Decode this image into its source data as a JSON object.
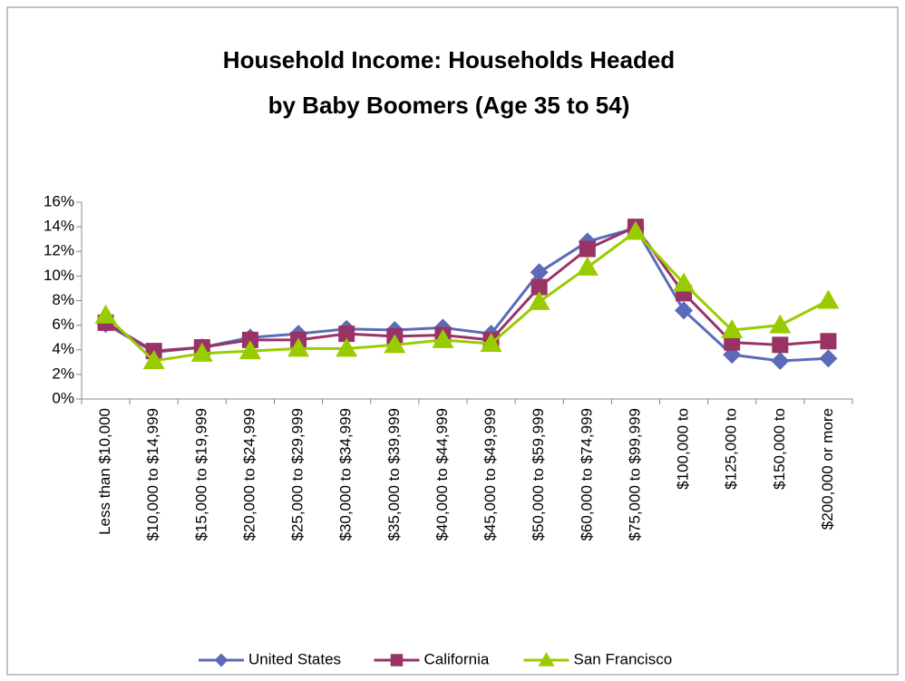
{
  "chart_data": {
    "type": "line",
    "title": [
      "Household Income: Households Headed",
      "by Baby Boomers (Age 35 to 54)"
    ],
    "categories": [
      "Less than $10,000",
      "$10,000 to $14,999",
      "$15,000 to $19,999",
      "$20,000 to $24,999",
      "$25,000 to $29,999",
      "$30,000 to $34,999",
      "$35,000 to $39,999",
      "$40,000 to $44,999",
      "$45,000 to $49,999",
      "$50,000 to $59,999",
      "$60,000 to $74,999",
      "$75,000 to $99,999",
      "$100,000 to",
      "$125,000 to",
      "$150,000 to",
      "$200,000 or more"
    ],
    "series": [
      {
        "name": "United States",
        "color": "#5b6bb8",
        "marker": "diamond",
        "values": [
          6.1,
          3.8,
          4.2,
          5.0,
          5.3,
          5.7,
          5.6,
          5.8,
          5.3,
          10.3,
          12.8,
          13.9,
          7.2,
          3.6,
          3.1,
          3.3
        ]
      },
      {
        "name": "California",
        "color": "#993366",
        "marker": "square",
        "values": [
          6.2,
          3.9,
          4.2,
          4.8,
          4.8,
          5.3,
          5.1,
          5.2,
          4.8,
          9.1,
          12.2,
          14.0,
          8.6,
          4.6,
          4.4,
          4.7
        ]
      },
      {
        "name": "San Francisco",
        "color": "#99cc00",
        "marker": "triangle",
        "values": [
          6.8,
          3.1,
          3.7,
          3.9,
          4.1,
          4.1,
          4.4,
          4.8,
          4.5,
          7.9,
          10.7,
          13.6,
          9.4,
          5.6,
          6.0,
          8.0
        ]
      }
    ],
    "ylim": [
      0,
      16
    ],
    "yticks": [
      {
        "value": 0,
        "label": "0%"
      },
      {
        "value": 2,
        "label": "2%"
      },
      {
        "value": 4,
        "label": "4%"
      },
      {
        "value": 6,
        "label": "6%"
      },
      {
        "value": 8,
        "label": "8%"
      },
      {
        "value": 10,
        "label": "10%"
      },
      {
        "value": 12,
        "label": "12%"
      },
      {
        "value": 14,
        "label": "14%"
      },
      {
        "value": 16,
        "label": "16%"
      }
    ],
    "grid": false,
    "legend": "bottom"
  }
}
